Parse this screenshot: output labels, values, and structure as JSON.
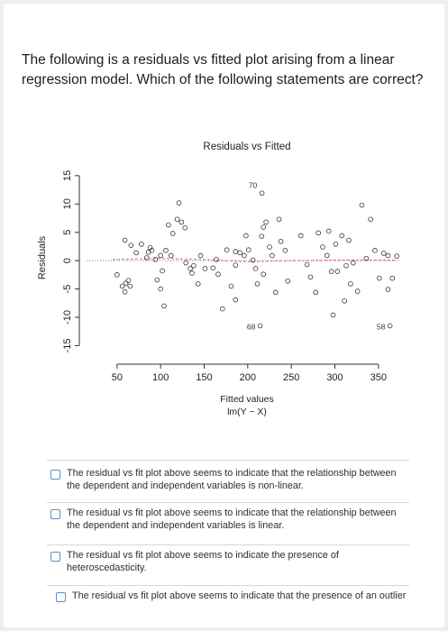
{
  "question": {
    "text": "The following is a residuals vs fitted plot arising from a linear regression model. Which of the following statements are correct?"
  },
  "chart_data": {
    "type": "scatter",
    "title": "Residuals vs Fitted",
    "xlabel": "Fitted values",
    "xlabel_sub": "lm(Y ~ X)",
    "ylabel": "Residuals",
    "xlim": [
      15,
      375
    ],
    "ylim": [
      -17,
      18
    ],
    "x_ticks": [
      50,
      100,
      150,
      200,
      250,
      300,
      350
    ],
    "y_ticks": [
      -15,
      -10,
      -5,
      0,
      5,
      10,
      15
    ],
    "smoother": "red dashed",
    "zero_line": "dotted",
    "point_labels": [
      {
        "text": "70",
        "x": 208,
        "y": 13.5
      },
      {
        "text": "68",
        "x": 206,
        "y": -11.5
      },
      {
        "text": "58",
        "x": 355,
        "y": -11.5
      }
    ],
    "points": [
      [
        50,
        -2.5
      ],
      [
        56,
        -4.5
      ],
      [
        59,
        -5.5
      ],
      [
        63,
        -3.5
      ],
      [
        60,
        -4
      ],
      [
        65,
        -4.5
      ],
      [
        59,
        3.6
      ],
      [
        66,
        2.7
      ],
      [
        72,
        1.4
      ],
      [
        78,
        2.9
      ],
      [
        84,
        0.5
      ],
      [
        86,
        1.5
      ],
      [
        88,
        2.3
      ],
      [
        90,
        1.8
      ],
      [
        94,
        0.2
      ],
      [
        96,
        -3.4
      ],
      [
        100,
        -5
      ],
      [
        102,
        -1.8
      ],
      [
        104,
        -8
      ],
      [
        100,
        0.9
      ],
      [
        106,
        1.8
      ],
      [
        112,
        0.9
      ],
      [
        109,
        6.3
      ],
      [
        119,
        7.3
      ],
      [
        114,
        4.8
      ],
      [
        124,
        6.8
      ],
      [
        128,
        5.8
      ],
      [
        121,
        10.2
      ],
      [
        134,
        -1.4
      ],
      [
        138,
        -0.9
      ],
      [
        143,
        -4.1
      ],
      [
        129,
        -0.4
      ],
      [
        136,
        -2.2
      ],
      [
        146,
        0.9
      ],
      [
        151,
        -1.4
      ],
      [
        160,
        -1.3
      ],
      [
        164,
        0.2
      ],
      [
        166,
        -2.4
      ],
      [
        176,
        1.9
      ],
      [
        186,
        1.6
      ],
      [
        186,
        -0.8
      ],
      [
        191,
        1.4
      ],
      [
        196,
        0.9
      ],
      [
        198,
        4.4
      ],
      [
        201,
        1.9
      ],
      [
        206,
        0.1
      ],
      [
        209,
        -1.4
      ],
      [
        211,
        -4.1
      ],
      [
        216,
        4.3
      ],
      [
        218,
        5.9
      ],
      [
        221,
        6.8
      ],
      [
        225,
        2.4
      ],
      [
        228,
        0.9
      ],
      [
        232,
        -5.6
      ],
      [
        236,
        7.3
      ],
      [
        238,
        3.4
      ],
      [
        243,
        1.8
      ],
      [
        246,
        -3.6
      ],
      [
        218,
        -2.4
      ],
      [
        181,
        -4.5
      ],
      [
        186,
        -6.9
      ],
      [
        171,
        -8.5
      ],
      [
        261,
        4.4
      ],
      [
        268,
        -0.7
      ],
      [
        272,
        -2.9
      ],
      [
        278,
        -5.6
      ],
      [
        281,
        4.9
      ],
      [
        286,
        2.4
      ],
      [
        291,
        0.9
      ],
      [
        293,
        5.2
      ],
      [
        296,
        -1.9
      ],
      [
        301,
        2.9
      ],
      [
        308,
        4.4
      ],
      [
        311,
        -7.1
      ],
      [
        316,
        3.6
      ],
      [
        318,
        -4.1
      ],
      [
        326,
        -5.4
      ],
      [
        331,
        9.8
      ],
      [
        336,
        0.4
      ],
      [
        341,
        7.3
      ],
      [
        346,
        1.8
      ],
      [
        351,
        -3.1
      ],
      [
        356,
        1.3
      ],
      [
        361,
        -5.1
      ],
      [
        361,
        0.9
      ],
      [
        366,
        -3.1
      ],
      [
        371,
        0.8
      ],
      [
        303,
        -1.9
      ],
      [
        313,
        -0.9
      ],
      [
        321,
        -0.4
      ],
      [
        298,
        -9.6
      ]
    ],
    "grid": false,
    "legend": "none"
  },
  "options": [
    {
      "label": "The residual vs fit plot above seems to indicate that the relationship between the dependent and independent variables is non-linear."
    },
    {
      "label": "The residual vs fit plot above seems to indicate that the relationship between the dependent and independent variables is linear."
    },
    {
      "label": "The residual vs fit plot above seems to indicate the presence of heteroscedasticity."
    },
    {
      "label": "The residual vs fit plot above seems to indicate that the presence of an outlier"
    }
  ],
  "colors": {
    "checkbox_border": "#5a8fc7",
    "smoother": "#d9534f",
    "points": "#333333"
  }
}
